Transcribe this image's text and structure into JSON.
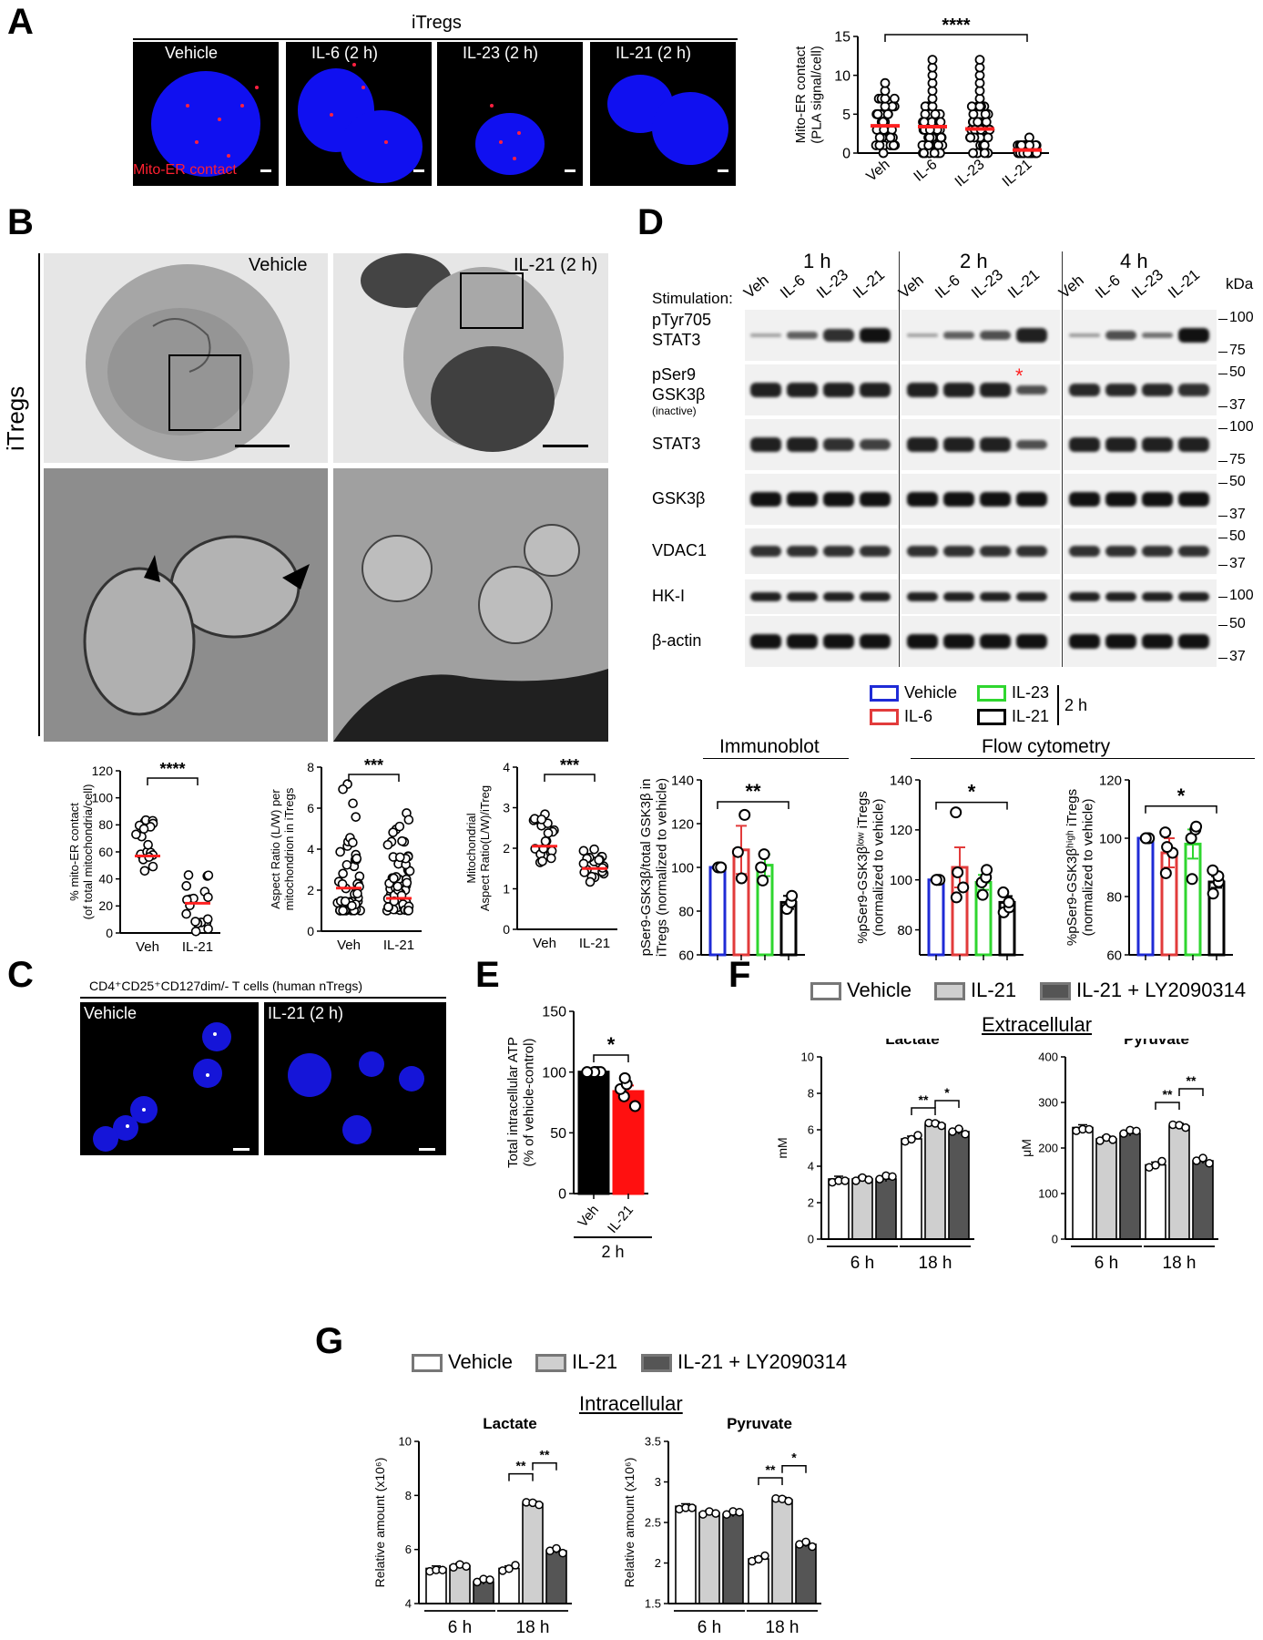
{
  "panels": {
    "A": {
      "letter": "A",
      "group_title": "iTregs",
      "image_labels": [
        "Vehicle",
        "IL-6 (2 h)",
        "IL-23 (2 h)",
        "IL-21 (2 h)"
      ],
      "overlay_label": "Mito-ER contact"
    },
    "B": {
      "letter": "B",
      "side_label": "iTregs",
      "image_labels": [
        "Vehicle",
        "IL-21 (2 h)"
      ]
    },
    "C": {
      "letter": "C",
      "title": "CD4⁺CD25⁺CD127dim/- T cells (human nTregs)",
      "image_labels": [
        "Vehicle",
        "IL-21 (2 h)"
      ]
    },
    "D": {
      "letter": "D",
      "timepoints": [
        "1 h",
        "2 h",
        "4 h"
      ],
      "stimulation_label": "Stimulation:",
      "lane_labels": [
        "Veh",
        "IL-6",
        "IL-23",
        "IL-21"
      ],
      "kda_label": "kDa",
      "rows": [
        {
          "label": "pTyr705\nSTAT3",
          "markers": [
            "100",
            "75"
          ]
        },
        {
          "label": "pSer9\nGSK3β",
          "sub": "(inactive)",
          "markers": [
            "50",
            "37"
          ]
        },
        {
          "label": "STAT3",
          "markers": [
            "100",
            "75"
          ]
        },
        {
          "label": "GSK3β",
          "markers": [
            "50",
            "37"
          ]
        },
        {
          "label": "VDAC1",
          "markers": [
            "50",
            "37"
          ]
        },
        {
          "label": "HK-I",
          "markers": [
            "100"
          ]
        },
        {
          "label": "β-actin",
          "markers": [
            "50",
            "37"
          ]
        }
      ],
      "legend": {
        "items": [
          "Vehicle",
          "IL-23",
          "IL-6",
          "IL-21"
        ],
        "suffix": "2 h"
      },
      "section_titles": [
        "Immunoblot",
        "Flow cytometry"
      ]
    },
    "E": {
      "letter": "E"
    },
    "F": {
      "letter": "F",
      "legend": [
        "Vehicle",
        "IL-21",
        "IL-21 + LY2090314"
      ],
      "section_title": "Extracellular"
    },
    "G": {
      "letter": "G",
      "legend": [
        "Vehicle",
        "IL-21",
        "IL-21 + LY2090314"
      ],
      "section_title": "Intracellular"
    }
  },
  "colors": {
    "veh": "#1f2bd6",
    "il6": "#e23b3b",
    "il23": "#2fd62f",
    "il21": "#000000",
    "red_marker": "#ff2020",
    "white_bar": "#ffffff",
    "grey_bar": "#cfcfcf",
    "dark_bar": "#555555"
  },
  "chart_data": [
    {
      "id": "A-scatter",
      "type": "scatter",
      "ylabel": "Mito-ER contact\n(PLA signal/cell)",
      "categories": [
        "Veh",
        "IL-6",
        "IL-23",
        "IL-21"
      ],
      "means": [
        3.5,
        3.4,
        3.1,
        0.4
      ],
      "ylim": [
        0,
        15
      ],
      "yticks": [
        0,
        5,
        10,
        15
      ],
      "significance": "****"
    },
    {
      "id": "B-mito-er",
      "type": "scatter",
      "ylabel": "% mito-ER contact\n(of total mitochondria/cell)",
      "categories": [
        "Veh",
        "IL-21"
      ],
      "means": [
        57,
        22
      ],
      "ylim": [
        0,
        120
      ],
      "yticks": [
        0,
        20,
        40,
        60,
        80,
        100,
        120
      ],
      "significance": "****"
    },
    {
      "id": "B-aspect",
      "type": "scatter",
      "ylabel": "Aspect Ratio (L/W) per\nmitochondrion in iTregs",
      "categories": [
        "Veh",
        "IL-21"
      ],
      "means": [
        2.1,
        1.6
      ],
      "ylim": [
        0,
        8
      ],
      "yticks": [
        0,
        2,
        4,
        6,
        8
      ],
      "significance": "***"
    },
    {
      "id": "B-mito-aspect",
      "type": "scatter",
      "ylabel": "Mitochondrial\nAspect Ratio(L/W)/iTreg",
      "categories": [
        "Veh",
        "IL-21"
      ],
      "means": [
        2.05,
        1.5
      ],
      "ylim": [
        0,
        4
      ],
      "yticks": [
        0,
        1,
        2,
        3,
        4
      ],
      "significance": "***"
    },
    {
      "id": "D-immunoblot",
      "type": "bar",
      "ylabel": "pSer9-GSK3β/total GSK3β in\niTregs (normalized to vehicle)",
      "categories": [
        "Vehicle",
        "IL-6",
        "IL-23",
        "IL-21"
      ],
      "values": [
        100,
        108,
        101,
        84
      ],
      "errors": [
        0.5,
        11,
        5,
        3
      ],
      "points": [
        [
          100,
          100,
          100
        ],
        [
          95,
          107,
          124
        ],
        [
          94,
          100,
          106
        ],
        [
          81,
          84,
          87
        ]
      ],
      "ylim": [
        60,
        140
      ],
      "yticks": [
        60,
        80,
        100,
        120,
        140
      ],
      "significance": "**"
    },
    {
      "id": "D-flow-low",
      "type": "bar",
      "ylabel": "%pSer9-GSK3β^low iTregs\n(normalized to vehicle)",
      "categories": [
        "Vehicle",
        "IL-6",
        "IL-23",
        "IL-21"
      ],
      "values": [
        100,
        105,
        99,
        91
      ],
      "errors": [
        0.5,
        8,
        3,
        2.5
      ],
      "points": [
        [
          100,
          100,
          100,
          100
        ],
        [
          93,
          97,
          103,
          127
        ],
        [
          94,
          99,
          101,
          104
        ],
        [
          87,
          89,
          91,
          95
        ]
      ],
      "ylim": [
        70,
        140
      ],
      "yticks": [
        80,
        100,
        120,
        140
      ],
      "significance": "*"
    },
    {
      "id": "D-flow-high",
      "type": "bar",
      "ylabel": "%pSer9-GSK3β^high iTregs\n(normalized to vehicle)",
      "categories": [
        "Vehicle",
        "IL-6",
        "IL-23",
        "IL-21"
      ],
      "values": [
        100,
        95,
        98,
        85
      ],
      "errors": [
        0.5,
        5,
        5,
        2
      ],
      "points": [
        [
          100,
          100,
          100,
          100
        ],
        [
          88,
          95,
          97,
          102
        ],
        [
          86,
          100,
          103,
          104
        ],
        [
          81,
          85,
          87,
          89
        ]
      ],
      "ylim": [
        60,
        120
      ],
      "yticks": [
        60,
        80,
        100,
        120
      ],
      "significance": "*"
    },
    {
      "id": "E-atp",
      "type": "bar",
      "ylabel": "Total intracellular ATP\n(% of vehicle-control)",
      "categories": [
        "Veh",
        "IL-21"
      ],
      "group_label": "2 h",
      "values": [
        100,
        84
      ],
      "errors": [
        0.5,
        5
      ],
      "points": [
        [
          100,
          100,
          100,
          100,
          100
        ],
        [
          72,
          80,
          86,
          90,
          95
        ]
      ],
      "ylim": [
        0,
        150
      ],
      "yticks": [
        0,
        50,
        100,
        150
      ],
      "significance": "*"
    },
    {
      "id": "F-lactate",
      "type": "bar",
      "title": "Lactate",
      "ylabel": "mM",
      "groups": [
        "6 h",
        "18 h"
      ],
      "series": [
        {
          "name": "Vehicle",
          "values": [
            3.3,
            5.5
          ]
        },
        {
          "name": "IL-21",
          "values": [
            3.3,
            6.3
          ]
        },
        {
          "name": "IL-21 + LY2090314",
          "values": [
            3.3,
            5.9
          ]
        }
      ],
      "ylim": [
        0,
        10
      ],
      "yticks": [
        0,
        2,
        4,
        6,
        8,
        10
      ],
      "significance": [
        "**",
        "*"
      ]
    },
    {
      "id": "F-pyruvate",
      "type": "bar",
      "title": "Pyruvate",
      "ylabel": "μM",
      "groups": [
        "6 h",
        "18 h"
      ],
      "series": [
        {
          "name": "Vehicle",
          "values": [
            245,
            163
          ]
        },
        {
          "name": "IL-21",
          "values": [
            220,
            248
          ]
        },
        {
          "name": "IL-21 + LY2090314",
          "values": [
            232,
            172
          ]
        }
      ],
      "ylim": [
        0,
        400
      ],
      "yticks": [
        0,
        100,
        200,
        300,
        400
      ],
      "significance": [
        "**",
        "**"
      ]
    },
    {
      "id": "G-lactate",
      "type": "bar",
      "title": "Lactate",
      "ylabel": "Relative amount (x10^6)",
      "groups": [
        "6 h",
        "18 h"
      ],
      "series": [
        {
          "name": "Vehicle",
          "values": [
            5.3,
            5.3
          ]
        },
        {
          "name": "IL-21",
          "values": [
            5.4,
            7.7
          ]
        },
        {
          "name": "IL-21 + LY2090314",
          "values": [
            4.8,
            5.95
          ]
        }
      ],
      "ylim": [
        4,
        10
      ],
      "yticks": [
        4,
        6,
        8,
        10
      ],
      "significance": [
        "**",
        "**"
      ]
    },
    {
      "id": "G-pyruvate",
      "type": "bar",
      "title": "Pyruvate",
      "ylabel": "Relative amount (x10^6)",
      "groups": [
        "6 h",
        "18 h"
      ],
      "series": [
        {
          "name": "Vehicle",
          "values": [
            2.7,
            2.05
          ]
        },
        {
          "name": "IL-21",
          "values": [
            2.62,
            2.78
          ]
        },
        {
          "name": "IL-21 + LY2090314",
          "values": [
            2.6,
            2.23
          ]
        }
      ],
      "ylim": [
        1.5,
        3.5
      ],
      "yticks": [
        1.5,
        2.0,
        2.5,
        3.0,
        3.5
      ],
      "significance": [
        "**",
        "*"
      ]
    }
  ]
}
